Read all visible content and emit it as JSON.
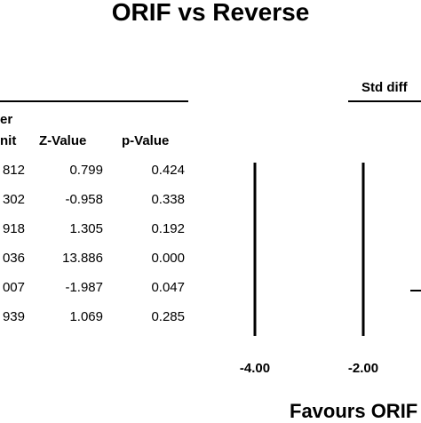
{
  "chart_data": {
    "type": "forest",
    "title": "ORIF vs Reverse",
    "effect_header": "Std diff",
    "table_headers": {
      "upper_limit_line1": "er",
      "upper_limit_line2": "nit",
      "z_value": "Z-Value",
      "p_value": "p-Value"
    },
    "rows": [
      {
        "upper_limit": "812",
        "z_value": "0.799",
        "p_value": "0.424"
      },
      {
        "upper_limit": "302",
        "z_value": "-0.958",
        "p_value": "0.338"
      },
      {
        "upper_limit": "918",
        "z_value": "1.305",
        "p_value": "0.192"
      },
      {
        "upper_limit": "036",
        "z_value": "13.886",
        "p_value": "0.000"
      },
      {
        "upper_limit": "007",
        "z_value": "-1.987",
        "p_value": "0.047"
      },
      {
        "upper_limit": "939",
        "z_value": "1.069",
        "p_value": "0.285"
      }
    ],
    "x_ticks": [
      {
        "value": -4,
        "label": "-4.00"
      },
      {
        "value": -2,
        "label": "-2.00"
      }
    ],
    "reference_lines": [
      -4,
      -2
    ],
    "x_axis": {
      "pixel_ref": [
        [
          -4,
          287
        ],
        [
          -2,
          409
        ]
      ]
    },
    "favours_label": "Favours ORIF",
    "row_marks": [
      {
        "row": 4,
        "x": 0
      }
    ]
  }
}
